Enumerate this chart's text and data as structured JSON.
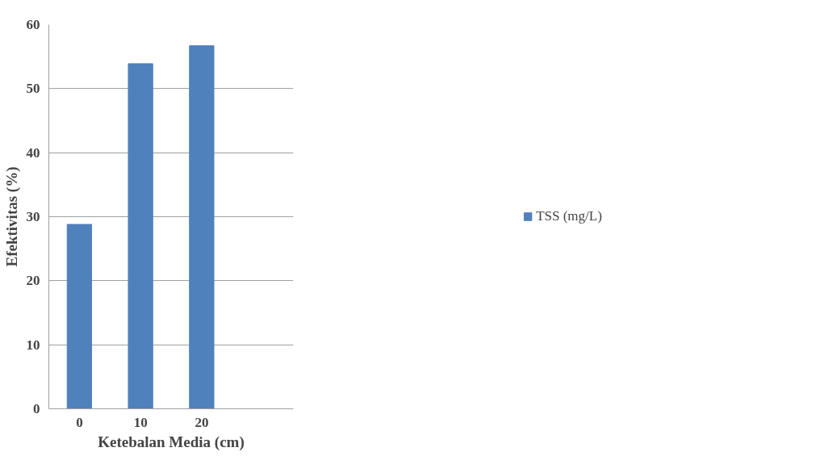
{
  "chart_data": {
    "type": "bar",
    "xlabel": "Ketebalan Media (cm)",
    "ylabel": "Efektivitas (%)",
    "categories": [
      "0",
      "10",
      "20",
      null
    ],
    "series": [
      {
        "name": "TSS (mg/L)",
        "color": "#4f81bd",
        "values": [
          28.8,
          53.9,
          56.7,
          null
        ]
      }
    ],
    "ylim": [
      0,
      60
    ],
    "yticks": [
      0,
      10,
      20,
      30,
      40,
      50,
      60
    ],
    "grid": "y",
    "legend": "right"
  }
}
